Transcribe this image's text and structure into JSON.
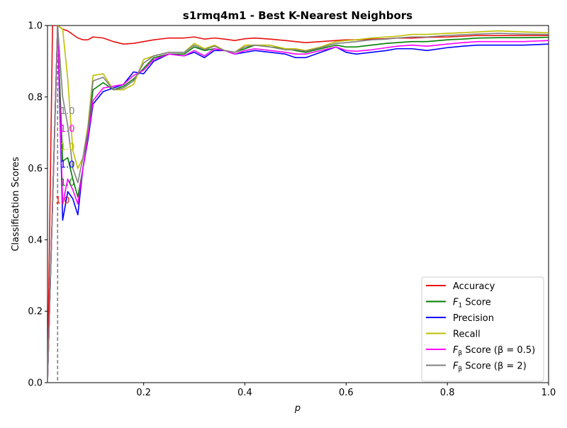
{
  "chart_data": {
    "type": "line",
    "title": "s1rmq4m1 - Best K-Nearest Neighbors",
    "xlabel": "p",
    "ylabel": "Classification Scores",
    "xlim": [
      0.01,
      1.0
    ],
    "ylim": [
      0.0,
      1.0
    ],
    "xticks": [
      0.2,
      0.4,
      0.6,
      0.8,
      1.0
    ],
    "xtick_labels": [
      "0.2",
      "0.4",
      "0.6",
      "0.8",
      "1.0"
    ],
    "yticks": [
      0.0,
      0.2,
      0.4,
      0.6,
      0.8,
      1.0
    ],
    "ytick_labels": [
      "0.0",
      "0.2",
      "0.4",
      "0.6",
      "0.8",
      "1.0"
    ],
    "grid": false,
    "legend_position": "lower-right",
    "legend": [
      {
        "label": "Accuracy",
        "color": "#e8100f",
        "math": false
      },
      {
        "label": "F",
        "sub": "1",
        "suffix": " Score",
        "color": "#007f00",
        "math": true
      },
      {
        "label": "Precision",
        "color": "#0000ff",
        "math": false
      },
      {
        "label": "Recall",
        "color": "#bfbf00",
        "math": false
      },
      {
        "label": "F",
        "sub": "β",
        "suffix": " Score (β = 0.5)",
        "color": "#ff00ff",
        "math": true
      },
      {
        "label": "F",
        "sub": "β",
        "suffix": " Score (β = 2)",
        "color": "#808080",
        "math": true
      }
    ],
    "best_p": 0.03,
    "best_labels": [
      {
        "text": "1.0",
        "y": 0.76,
        "color": "#808080"
      },
      {
        "text": "1.0",
        "y": 0.71,
        "color": "#ff00ff"
      },
      {
        "text": "1.0",
        "y": 0.66,
        "color": "#bfbf00"
      },
      {
        "text": "1.0",
        "y": 0.61,
        "color": "#0000ff"
      },
      {
        "text": "1.0",
        "y": 0.56,
        "color": "#007f00"
      },
      {
        "text": "1.0",
        "y": 0.51,
        "color": "#e8100f",
        "x_offset": -0.01
      }
    ],
    "x": [
      0.01,
      0.02,
      0.03,
      0.04,
      0.05,
      0.06,
      0.07,
      0.08,
      0.09,
      0.1,
      0.12,
      0.14,
      0.16,
      0.18,
      0.2,
      0.22,
      0.25,
      0.28,
      0.3,
      0.32,
      0.34,
      0.36,
      0.38,
      0.4,
      0.42,
      0.45,
      0.48,
      0.5,
      0.52,
      0.55,
      0.58,
      0.6,
      0.62,
      0.65,
      0.68,
      0.7,
      0.73,
      0.76,
      0.8,
      0.83,
      0.86,
      0.9,
      0.95,
      1.0
    ],
    "series": [
      {
        "name": "Accuracy",
        "color": "#e8100f",
        "values": [
          0.0,
          1.0,
          1.0,
          0.99,
          0.985,
          0.975,
          0.965,
          0.96,
          0.96,
          0.968,
          0.965,
          0.955,
          0.948,
          0.95,
          0.955,
          0.96,
          0.965,
          0.965,
          0.968,
          0.962,
          0.965,
          0.962,
          0.958,
          0.963,
          0.965,
          0.962,
          0.958,
          0.955,
          0.952,
          0.955,
          0.958,
          0.96,
          0.96,
          0.962,
          0.963,
          0.965,
          0.965,
          0.967,
          0.968,
          0.97,
          0.972,
          0.972,
          0.972,
          0.972
        ]
      },
      {
        "name": "F1 Score",
        "color": "#007f00",
        "values": [
          0.0,
          0.5,
          1.0,
          0.62,
          0.63,
          0.57,
          0.52,
          0.6,
          0.7,
          0.82,
          0.84,
          0.82,
          0.83,
          0.85,
          0.88,
          0.91,
          0.92,
          0.92,
          0.94,
          0.93,
          0.935,
          0.93,
          0.925,
          0.935,
          0.945,
          0.94,
          0.935,
          0.93,
          0.925,
          0.935,
          0.945,
          0.94,
          0.94,
          0.945,
          0.95,
          0.952,
          0.955,
          0.955,
          0.96,
          0.962,
          0.965,
          0.966,
          0.966,
          0.967
        ]
      },
      {
        "name": "Precision",
        "color": "#0000ff",
        "values": [
          0.0,
          0.5,
          1.0,
          0.455,
          0.535,
          0.515,
          0.47,
          0.6,
          0.68,
          0.78,
          0.815,
          0.825,
          0.835,
          0.87,
          0.865,
          0.9,
          0.92,
          0.915,
          0.925,
          0.91,
          0.93,
          0.93,
          0.92,
          0.925,
          0.93,
          0.925,
          0.92,
          0.91,
          0.91,
          0.925,
          0.94,
          0.925,
          0.92,
          0.925,
          0.93,
          0.935,
          0.935,
          0.93,
          0.938,
          0.942,
          0.945,
          0.945,
          0.945,
          0.948
        ]
      },
      {
        "name": "Recall",
        "color": "#bfbf00",
        "values": [
          0.0,
          0.5,
          1.0,
          0.99,
          0.85,
          0.65,
          0.6,
          0.63,
          0.72,
          0.86,
          0.865,
          0.82,
          0.82,
          0.835,
          0.905,
          0.915,
          0.925,
          0.925,
          0.95,
          0.935,
          0.945,
          0.93,
          0.925,
          0.945,
          0.945,
          0.945,
          0.935,
          0.935,
          0.93,
          0.94,
          0.955,
          0.958,
          0.96,
          0.965,
          0.968,
          0.97,
          0.975,
          0.975,
          0.978,
          0.98,
          0.982,
          0.985,
          0.982,
          0.98
        ]
      },
      {
        "name": "Fβ Score (β = 0.5)",
        "color": "#ff00ff",
        "values": [
          0.0,
          0.5,
          1.0,
          0.5,
          0.57,
          0.54,
          0.5,
          0.6,
          0.69,
          0.79,
          0.825,
          0.83,
          0.835,
          0.86,
          0.875,
          0.905,
          0.92,
          0.915,
          0.93,
          0.915,
          0.935,
          0.93,
          0.92,
          0.93,
          0.935,
          0.93,
          0.925,
          0.92,
          0.92,
          0.93,
          0.94,
          0.93,
          0.928,
          0.932,
          0.938,
          0.942,
          0.945,
          0.942,
          0.948,
          0.952,
          0.955,
          0.955,
          0.955,
          0.958
        ]
      },
      {
        "name": "Fβ Score (β = 2)",
        "color": "#808080",
        "values": [
          0.0,
          0.5,
          1.0,
          0.8,
          0.72,
          0.6,
          0.56,
          0.63,
          0.71,
          0.845,
          0.855,
          0.82,
          0.825,
          0.845,
          0.895,
          0.915,
          0.925,
          0.925,
          0.945,
          0.932,
          0.942,
          0.93,
          0.925,
          0.94,
          0.945,
          0.94,
          0.932,
          0.932,
          0.928,
          0.938,
          0.95,
          0.952,
          0.955,
          0.96,
          0.962,
          0.965,
          0.968,
          0.968,
          0.972,
          0.974,
          0.976,
          0.978,
          0.976,
          0.975
        ]
      }
    ]
  }
}
